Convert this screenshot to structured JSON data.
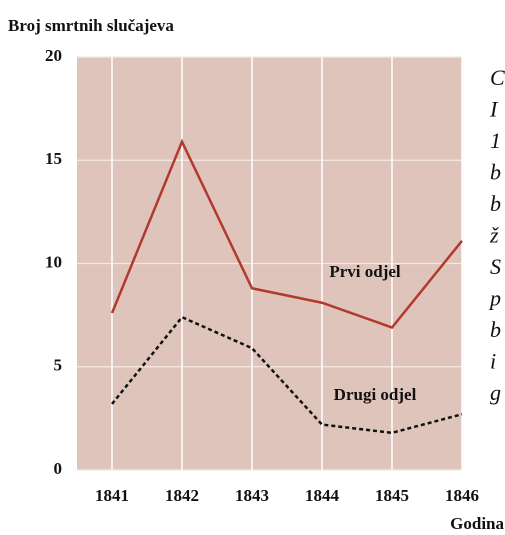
{
  "chart_data": {
    "type": "line",
    "title": "Broj smrtnih slučajeva",
    "x_label": "Godina",
    "x": [
      1841,
      1842,
      1843,
      1844,
      1845,
      1846
    ],
    "series": [
      {
        "name": "Prvi odjel",
        "color": "#b03a2e",
        "style": "solid",
        "values": [
          7.6,
          15.9,
          8.8,
          8.1,
          6.9,
          11.1
        ]
      },
      {
        "name": "Drugi odjel",
        "color": "#111111",
        "style": "dashed",
        "values": [
          3.2,
          7.4,
          5.9,
          2.2,
          1.8,
          2.7
        ]
      }
    ],
    "xlim": [
      1840.5,
      1846
    ],
    "xticks": [
      1841,
      1842,
      1843,
      1844,
      1845,
      1846
    ],
    "ylim": [
      0,
      20
    ],
    "yticks": [
      0,
      5,
      10,
      15,
      20
    ],
    "grid": true,
    "plot_background": "#dfc4bc"
  },
  "side_text_lines": [
    "C",
    "I",
    "1",
    "b",
    "b",
    "ž",
    "S",
    "p",
    "b",
    "i",
    "g"
  ]
}
